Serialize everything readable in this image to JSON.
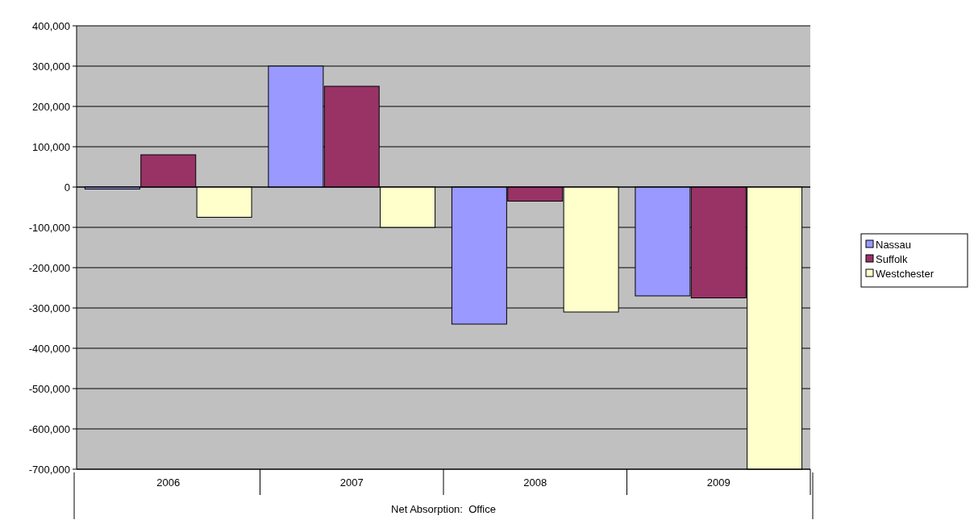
{
  "chart_data": {
    "type": "bar",
    "xlabel": "Net Absorption:  Office",
    "categories": [
      "2006",
      "2007",
      "2008",
      "2009"
    ],
    "series": [
      {
        "name": "Nassau",
        "color": "#9999ff",
        "values": [
          -5000,
          300000,
          -340000,
          -270000
        ]
      },
      {
        "name": "Suffolk",
        "color": "#993366",
        "values": [
          80000,
          250000,
          -35000,
          -275000
        ]
      },
      {
        "name": "Westchester",
        "color": "#ffffcc",
        "values": [
          -75000,
          -100000,
          -310000,
          -700000
        ]
      }
    ],
    "ylim": [
      -700000,
      400000
    ],
    "yticks": [
      {
        "value": -700000,
        "label": "-700,000"
      },
      {
        "value": -600000,
        "label": "-600,000"
      },
      {
        "value": -500000,
        "label": "-500,000"
      },
      {
        "value": -400000,
        "label": "-400,000"
      },
      {
        "value": -300000,
        "label": "-300,000"
      },
      {
        "value": -200000,
        "label": "-200,000"
      },
      {
        "value": -100000,
        "label": "-100,000"
      },
      {
        "value": 0,
        "label": "0"
      },
      {
        "value": 100000,
        "label": "100,000"
      },
      {
        "value": 200000,
        "label": "200,000"
      },
      {
        "value": 300000,
        "label": "300,000"
      },
      {
        "value": 400000,
        "label": "400,000"
      }
    ],
    "grid": "y",
    "legend": "right"
  }
}
